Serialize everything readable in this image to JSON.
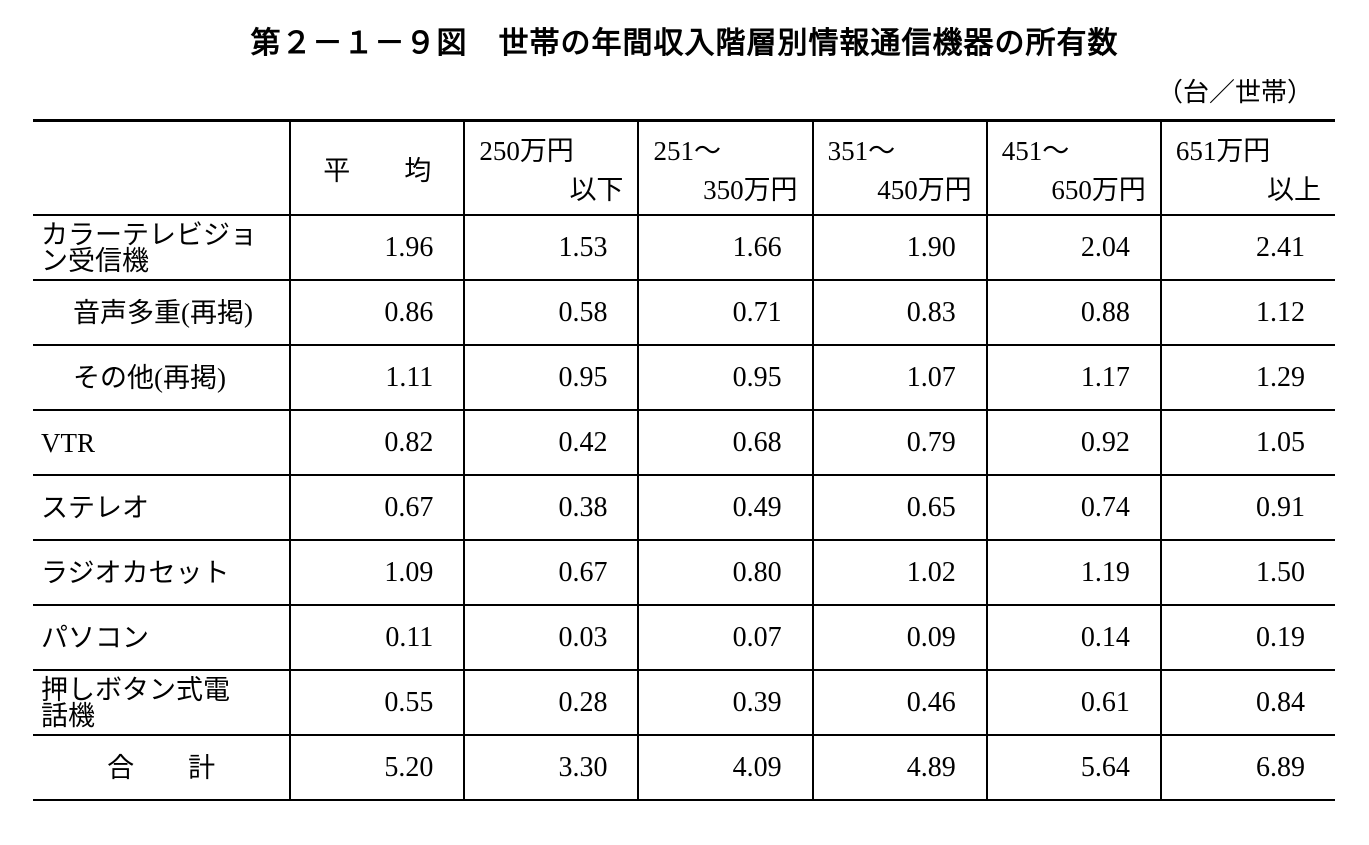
{
  "header": {
    "title": "第２－１－９図　世帯の年間収入階層別情報通信機器の所有数",
    "unit": "（台／世帯）"
  },
  "table": {
    "columns": [
      [
        "平　　均"
      ],
      [
        "250万円",
        "以下"
      ],
      [
        "251～",
        "350万円"
      ],
      [
        "351～",
        "450万円"
      ],
      [
        "451～",
        "650万円"
      ],
      [
        "651万円",
        "以上"
      ]
    ],
    "rows": [
      {
        "label": [
          "カラーテレビジョ",
          "ン受信機"
        ],
        "cells": [
          "1.96",
          "1.53",
          "1.66",
          "1.90",
          "2.04",
          "2.41"
        ]
      },
      {
        "label": [
          "音声多重(再掲)"
        ],
        "cells": [
          "0.86",
          "0.58",
          "0.71",
          "0.83",
          "0.88",
          "1.12"
        ]
      },
      {
        "label": [
          "その他(再掲)"
        ],
        "cells": [
          "1.11",
          "0.95",
          "0.95",
          "1.07",
          "1.17",
          "1.29"
        ]
      },
      {
        "label": [
          "VTR"
        ],
        "cells": [
          "0.82",
          "0.42",
          "0.68",
          "0.79",
          "0.92",
          "1.05"
        ]
      },
      {
        "label": [
          "ステレオ"
        ],
        "cells": [
          "0.67",
          "0.38",
          "0.49",
          "0.65",
          "0.74",
          "0.91"
        ]
      },
      {
        "label": [
          "ラジオカセット"
        ],
        "cells": [
          "1.09",
          "0.67",
          "0.80",
          "1.02",
          "1.19",
          "1.50"
        ]
      },
      {
        "label": [
          "パソコン"
        ],
        "cells": [
          "0.11",
          "0.03",
          "0.07",
          "0.09",
          "0.14",
          "0.19"
        ]
      },
      {
        "label": [
          "押しボタン式電",
          "話機"
        ],
        "cells": [
          "0.55",
          "0.28",
          "0.39",
          "0.46",
          "0.61",
          "0.84"
        ]
      },
      {
        "label": [
          "合　　計"
        ],
        "cells": [
          "5.20",
          "3.30",
          "4.09",
          "4.89",
          "5.64",
          "6.89"
        ]
      }
    ]
  }
}
